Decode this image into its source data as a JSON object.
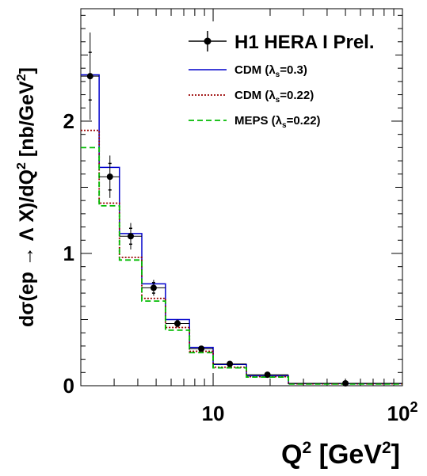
{
  "chart_data": {
    "type": "histogram-with-data-points",
    "xlabel": "Q² [GeV²]",
    "ylabel": "dσ(ep → Λ X)/dQ² [nb/GeV²]",
    "x_scale": "log",
    "xlim": [
      2,
      100
    ],
    "ylim": [
      0,
      2.85
    ],
    "x_tick_labels": [
      {
        "value": 10,
        "label": "10"
      },
      {
        "value": 100,
        "label": "10²"
      }
    ],
    "y_ticks": [
      0,
      1,
      2
    ],
    "y_tick_labels": [
      "0",
      "1",
      "2"
    ],
    "bin_edges": [
      2,
      2.5,
      3.2,
      4.2,
      5.6,
      7.5,
      10,
      15,
      25,
      100
    ],
    "data_series": {
      "name": "H1 HERA I Prel.",
      "points": [
        {
          "x": 2.24,
          "y": 2.34,
          "stat_err": 0.18,
          "tot_err": 0.33
        },
        {
          "x": 2.85,
          "y": 1.58,
          "stat_err": 0.1,
          "tot_err": 0.16
        },
        {
          "x": 3.67,
          "y": 1.13,
          "stat_err": 0.06,
          "tot_err": 0.1
        },
        {
          "x": 4.85,
          "y": 0.74,
          "stat_err": 0.04,
          "tot_err": 0.06
        },
        {
          "x": 6.48,
          "y": 0.47,
          "stat_err": 0.02,
          "tot_err": 0.03
        },
        {
          "x": 8.66,
          "y": 0.28,
          "stat_err": 0.012,
          "tot_err": 0.02
        },
        {
          "x": 12.25,
          "y": 0.165,
          "stat_err": 0.008,
          "tot_err": 0.012
        },
        {
          "x": 19.36,
          "y": 0.083,
          "stat_err": 0.005,
          "tot_err": 0.008
        },
        {
          "x": 50.0,
          "y": 0.018,
          "stat_err": 0.002,
          "tot_err": 0.003
        }
      ]
    },
    "model_series": [
      {
        "name": "CDM (λs=0.3)",
        "label_main": "CDM (λ",
        "label_sub": "s",
        "label_tail": "=0.3)",
        "color": "#0000cc",
        "style": "solid",
        "values": [
          2.35,
          1.65,
          1.15,
          0.77,
          0.5,
          0.29,
          0.16,
          0.075,
          0.016
        ]
      },
      {
        "name": "CDM (λs=0.22)",
        "label_main": "CDM (λ",
        "label_sub": "s",
        "label_tail": "=0.22)",
        "color": "#990000",
        "style": "dotted",
        "values": [
          1.93,
          1.38,
          0.97,
          0.66,
          0.44,
          0.26,
          0.14,
          0.068,
          0.014
        ]
      },
      {
        "name": "MEPS (λs=0.22)",
        "label_main": "MEPS (λ",
        "label_sub": "s",
        "label_tail": "=0.22)",
        "color": "#00bb00",
        "style": "dashed",
        "values": [
          1.8,
          1.36,
          0.95,
          0.64,
          0.42,
          0.25,
          0.135,
          0.065,
          0.013
        ]
      }
    ],
    "legend": "top-right"
  }
}
